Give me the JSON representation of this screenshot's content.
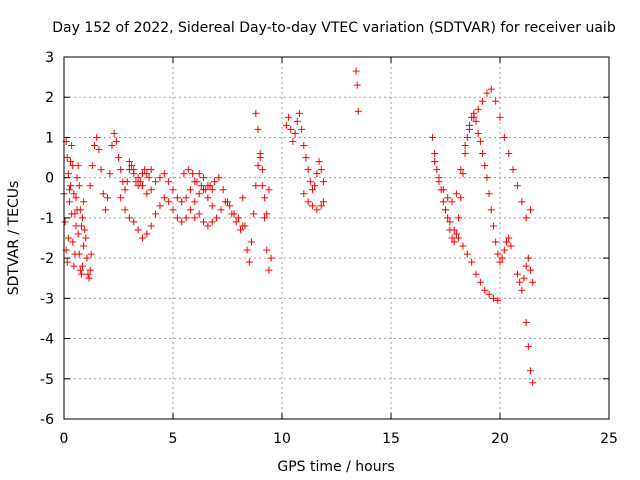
{
  "chart_data": {
    "type": "scatter",
    "title": "Day 152 of 2022, Sidereal Day-to-day VTEC variation (SDTVAR) for receiver uaib",
    "xlabel": "GPS time / hours",
    "ylabel": "SDTVAR / TECUs",
    "xlim": [
      0,
      25
    ],
    "ylim": [
      -6,
      3
    ],
    "xticks": [
      0,
      5,
      10,
      15,
      20,
      25
    ],
    "yticks": [
      -6,
      -5,
      -4,
      -3,
      -2,
      -1,
      0,
      1,
      2,
      3
    ],
    "xtick_labels": [
      "0",
      "5",
      "10",
      "15",
      "20",
      "25"
    ],
    "ytick_labels": [
      "-6",
      "-5",
      "-4",
      "-3",
      "-2",
      "-1",
      "0",
      "1",
      "2",
      "3"
    ],
    "grid": true,
    "marker": "+",
    "series": [
      {
        "name": "SDTVAR",
        "color": "#ff0000",
        "x": [
          0.0,
          0.05,
          0.1,
          0.15,
          0.2,
          0.25,
          0.3,
          0.35,
          0.4,
          0.45,
          0.5,
          0.55,
          0.6,
          0.65,
          0.7,
          0.75,
          0.8,
          0.85,
          0.9,
          0.95,
          1.0,
          1.05,
          1.1,
          1.15,
          1.2,
          1.25,
          0.1,
          0.15,
          0.2,
          0.25,
          0.3,
          0.35,
          0.4,
          0.45,
          0.5,
          0.55,
          0.6,
          0.65,
          0.7,
          0.75,
          0.8,
          0.85,
          0.9,
          1.2,
          1.3,
          1.4,
          1.5,
          1.6,
          1.7,
          1.8,
          1.9,
          2.0,
          2.1,
          2.2,
          2.3,
          2.4,
          2.5,
          2.6,
          2.7,
          2.8,
          2.9,
          3.0,
          3.1,
          3.2,
          3.3,
          3.4,
          3.5,
          3.6,
          3.7,
          3.8,
          3.9,
          4.0,
          2.6,
          2.8,
          3.0,
          3.2,
          3.4,
          3.6,
          3.8,
          4.0,
          4.2,
          4.4,
          4.6,
          4.8,
          5.0,
          5.2,
          5.4,
          5.6,
          5.8,
          6.0,
          6.2,
          6.4,
          6.6,
          6.8,
          3.0,
          3.2,
          3.4,
          3.6,
          3.8,
          4.0,
          4.2,
          4.4,
          4.6,
          4.8,
          5.0,
          5.2,
          5.4,
          5.6,
          5.8,
          6.0,
          6.2,
          6.4,
          6.6,
          6.8,
          5.5,
          5.7,
          5.9,
          6.1,
          6.3,
          6.5,
          6.7,
          6.9,
          7.1,
          7.3,
          7.5,
          7.7,
          7.9,
          8.1,
          6.0,
          6.2,
          6.4,
          6.6,
          6.8,
          7.0,
          7.2,
          7.4,
          7.6,
          7.8,
          8.0,
          8.2,
          8.2,
          8.3,
          8.4,
          8.5,
          8.6,
          8.7,
          8.8,
          8.9,
          9.0,
          9.1,
          9.2,
          9.3,
          9.4,
          8.8,
          8.9,
          9.0,
          9.1,
          9.2,
          9.3,
          9.4,
          9.5,
          10.2,
          10.3,
          10.4,
          10.5,
          10.6,
          10.7,
          10.8,
          10.9,
          11.0,
          11.1,
          11.2,
          11.3,
          11.4,
          11.5,
          11.6,
          11.7,
          11.8,
          11.9,
          11.0,
          11.2,
          11.4,
          11.6,
          11.8,
          11.9,
          13.4,
          13.45,
          13.5,
          16.9,
          17.0,
          17.1,
          17.2,
          17.3,
          17.4,
          17.5,
          17.6,
          17.7,
          17.8,
          17.9,
          18.0,
          18.1,
          18.2,
          18.3,
          18.4,
          18.5,
          18.6,
          18.7,
          18.8,
          18.9,
          19.0,
          19.1,
          19.2,
          19.3,
          19.4,
          19.5,
          19.6,
          19.7,
          19.8,
          19.9,
          20.0,
          20.1,
          20.2,
          20.3,
          20.4,
          20.5,
          17.0,
          17.2,
          17.4,
          17.6,
          17.8,
          18.0,
          18.2,
          18.4,
          18.6,
          18.8,
          19.0,
          19.2,
          19.4,
          19.6,
          19.8,
          20.0,
          20.2,
          20.4,
          20.6,
          20.8,
          21.0,
          21.2,
          21.4,
          17.5,
          17.7,
          17.9,
          18.1,
          18.3,
          18.5,
          18.7,
          18.9,
          19.1,
          19.3,
          19.5,
          19.7,
          19.9,
          20.8,
          20.9,
          21.0,
          21.1,
          21.2,
          21.3,
          21.4,
          21.5,
          21.2,
          21.3,
          21.4,
          21.5
        ],
        "y": [
          -0.4,
          -1.1,
          -1.8,
          -2.1,
          -1.5,
          -0.6,
          -0.2,
          -0.9,
          -1.6,
          -2.2,
          -1.9,
          -1.2,
          -0.8,
          -1.4,
          -1.9,
          -2.3,
          -2.4,
          -2.2,
          -1.7,
          -1.3,
          -1.5,
          -2.0,
          -2.4,
          -2.5,
          -2.3,
          -1.9,
          0.9,
          0.5,
          0.1,
          -0.3,
          0.4,
          0.8,
          0.3,
          -0.4,
          -0.9,
          -0.5,
          0.0,
          0.3,
          -0.2,
          -0.8,
          -1.2,
          -1.0,
          -0.6,
          -0.2,
          0.3,
          0.8,
          1.0,
          0.7,
          0.2,
          -0.4,
          -0.8,
          -0.5,
          0.1,
          0.8,
          1.1,
          0.9,
          0.5,
          0.2,
          -0.1,
          -0.3,
          -0.1,
          0.2,
          0.3,
          0.1,
          -0.1,
          -0.2,
          -0.1,
          0.1,
          0.2,
          0.1,
          0.0,
          0.2,
          -0.5,
          -0.8,
          -1.0,
          -1.1,
          -1.3,
          -1.5,
          -1.4,
          -1.2,
          -0.9,
          -0.7,
          -0.5,
          -0.6,
          -0.8,
          -1.0,
          -1.1,
          -1.0,
          -0.8,
          -0.6,
          -0.4,
          -0.3,
          -0.5,
          -0.7,
          0.4,
          0.2,
          0.0,
          -0.2,
          -0.4,
          -0.3,
          -0.1,
          0.0,
          0.1,
          -0.1,
          -0.3,
          -0.5,
          -0.6,
          -0.5,
          -0.3,
          -0.1,
          0.1,
          0.0,
          -0.2,
          -0.3,
          0.1,
          0.2,
          0.1,
          -0.1,
          -0.2,
          -0.3,
          -0.2,
          -0.1,
          0.0,
          -0.3,
          -0.6,
          -0.9,
          -1.1,
          -1.3,
          -1.0,
          -0.9,
          -1.1,
          -1.2,
          -1.1,
          -1.0,
          -0.8,
          -0.6,
          -0.7,
          -0.9,
          -1.0,
          -1.2,
          -0.5,
          -1.2,
          -1.8,
          -2.1,
          -1.6,
          -0.9,
          -0.2,
          0.3,
          0.6,
          0.2,
          -0.5,
          -0.9,
          -0.3,
          1.6,
          1.2,
          0.5,
          -0.2,
          -1.0,
          -1.8,
          -2.3,
          -2.0,
          1.3,
          1.5,
          1.2,
          0.9,
          1.1,
          1.4,
          1.6,
          1.2,
          0.8,
          0.5,
          0.2,
          -0.1,
          -0.3,
          -0.2,
          0.1,
          0.4,
          0.2,
          -0.1,
          -0.4,
          -0.6,
          -0.7,
          -0.8,
          -0.7,
          -0.6,
          2.65,
          2.3,
          1.65,
          1.0,
          0.6,
          0.2,
          -0.1,
          -0.3,
          -0.6,
          -0.8,
          -1.0,
          -1.3,
          -1.5,
          -1.6,
          -1.4,
          -1.0,
          -0.5,
          0.1,
          0.6,
          1.0,
          1.3,
          1.5,
          1.6,
          1.4,
          1.1,
          0.9,
          0.6,
          0.3,
          0.0,
          -0.4,
          -0.8,
          -1.2,
          -1.6,
          -1.9,
          -2.1,
          -2.0,
          -1.8,
          -1.6,
          -1.5,
          -1.7,
          0.4,
          0.0,
          -0.3,
          -0.5,
          -0.6,
          -0.4,
          0.2,
          0.8,
          1.2,
          1.5,
          1.7,
          1.9,
          2.1,
          2.2,
          1.9,
          1.5,
          1.0,
          0.6,
          0.2,
          -0.2,
          -0.6,
          -1.0,
          -0.8,
          -0.8,
          -1.1,
          -1.3,
          -1.5,
          -1.7,
          -1.9,
          -2.1,
          -2.4,
          -2.6,
          -2.8,
          -2.9,
          -3.0,
          -3.05,
          -2.4,
          -2.6,
          -2.8,
          -2.5,
          -2.2,
          -2.0,
          -2.3,
          -2.6,
          -3.6,
          -4.2,
          -4.8,
          -5.1
        ]
      }
    ]
  }
}
